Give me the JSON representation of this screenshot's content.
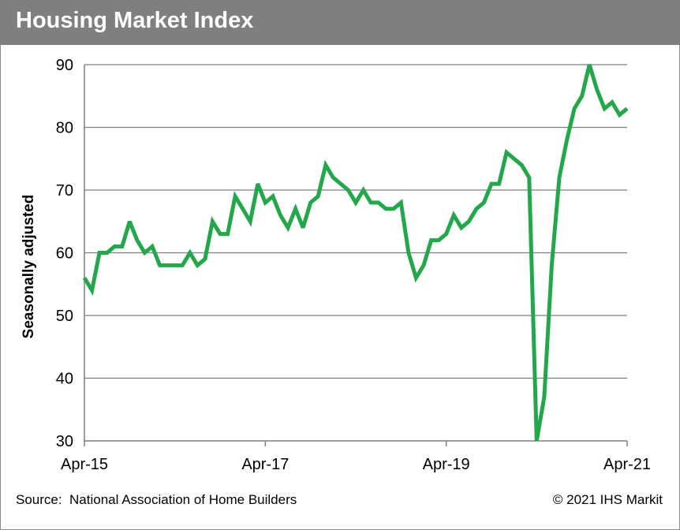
{
  "title": "Housing Market Index",
  "footer": {
    "source": "Source:  National Association of Home Builders",
    "copyright": "© 2021 IHS Markit"
  },
  "chart_data": {
    "type": "line",
    "title": "Housing Market Index",
    "xlabel": "",
    "ylabel": "Seasonally adjusted",
    "ylim": [
      30,
      90
    ],
    "yticks": [
      30,
      40,
      50,
      60,
      70,
      80,
      90
    ],
    "xlim": [
      "2015-04",
      "2021-04"
    ],
    "xtick_labels": [
      "Apr-15",
      "Apr-17",
      "Apr-19",
      "Apr-21"
    ],
    "grid": "horizontal",
    "line_color": "#22a84a",
    "series": [
      {
        "x": [
          "2015-04",
          "2015-05",
          "2015-06",
          "2015-07",
          "2015-08",
          "2015-09",
          "2015-10",
          "2015-11",
          "2015-12",
          "2016-01",
          "2016-02",
          "2016-03",
          "2016-04",
          "2016-05",
          "2016-06",
          "2016-07",
          "2016-08",
          "2016-09",
          "2016-10",
          "2016-11",
          "2016-12",
          "2017-01",
          "2017-02",
          "2017-03",
          "2017-04",
          "2017-05",
          "2017-06",
          "2017-07",
          "2017-08",
          "2017-09",
          "2017-10",
          "2017-11",
          "2017-12",
          "2018-01",
          "2018-02",
          "2018-03",
          "2018-04",
          "2018-05",
          "2018-06",
          "2018-07",
          "2018-08",
          "2018-09",
          "2018-10",
          "2018-11",
          "2018-12",
          "2019-01",
          "2019-02",
          "2019-03",
          "2019-04",
          "2019-05",
          "2019-06",
          "2019-07",
          "2019-08",
          "2019-09",
          "2019-10",
          "2019-11",
          "2019-12",
          "2020-01",
          "2020-02",
          "2020-03",
          "2020-04",
          "2020-05",
          "2020-06",
          "2020-07",
          "2020-08",
          "2020-09",
          "2020-10",
          "2020-11",
          "2020-12",
          "2021-01",
          "2021-02",
          "2021-03",
          "2021-04"
        ],
        "values": [
          56,
          54,
          60,
          60,
          61,
          61,
          65,
          62,
          60,
          61,
          58,
          58,
          58,
          58,
          60,
          58,
          59,
          65,
          63,
          63,
          69,
          67,
          65,
          71,
          68,
          69,
          66,
          64,
          67,
          64,
          68,
          69,
          74,
          72,
          71,
          70,
          68,
          70,
          68,
          68,
          67,
          67,
          68,
          60,
          56,
          58,
          62,
          62,
          63,
          66,
          64,
          65,
          67,
          68,
          71,
          71,
          76,
          75,
          74,
          72,
          30,
          37,
          58,
          72,
          78,
          83,
          85,
          90,
          86,
          83,
          84,
          82,
          83
        ]
      }
    ]
  }
}
